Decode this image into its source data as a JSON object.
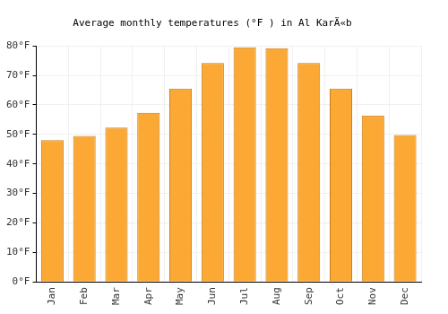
{
  "chart_data": {
    "type": "bar",
    "title": "Average monthly temperatures (°F ) in Al KarÄ«b",
    "categories": [
      "Jan",
      "Feb",
      "Mar",
      "Apr",
      "May",
      "Jun",
      "Jul",
      "Aug",
      "Sep",
      "Oct",
      "Nov",
      "Dec"
    ],
    "values": [
      48,
      49.5,
      52.3,
      57.3,
      65.5,
      74.2,
      79.5,
      79.2,
      74.2,
      65.5,
      56.4,
      49.8
    ],
    "color": "#fba834",
    "ylim": [
      0,
      80
    ],
    "yticks": [
      {
        "value": 0,
        "label": "0°F"
      },
      {
        "value": 10,
        "label": "10°F"
      },
      {
        "value": 20,
        "label": "20°F"
      },
      {
        "value": 30,
        "label": "30°F"
      },
      {
        "value": 40,
        "label": "40°F"
      },
      {
        "value": 50,
        "label": "50°F"
      },
      {
        "value": 60,
        "label": "60°F"
      },
      {
        "value": 70,
        "label": "70°F"
      },
      {
        "value": 80,
        "label": "80°F"
      }
    ],
    "grid": true
  }
}
